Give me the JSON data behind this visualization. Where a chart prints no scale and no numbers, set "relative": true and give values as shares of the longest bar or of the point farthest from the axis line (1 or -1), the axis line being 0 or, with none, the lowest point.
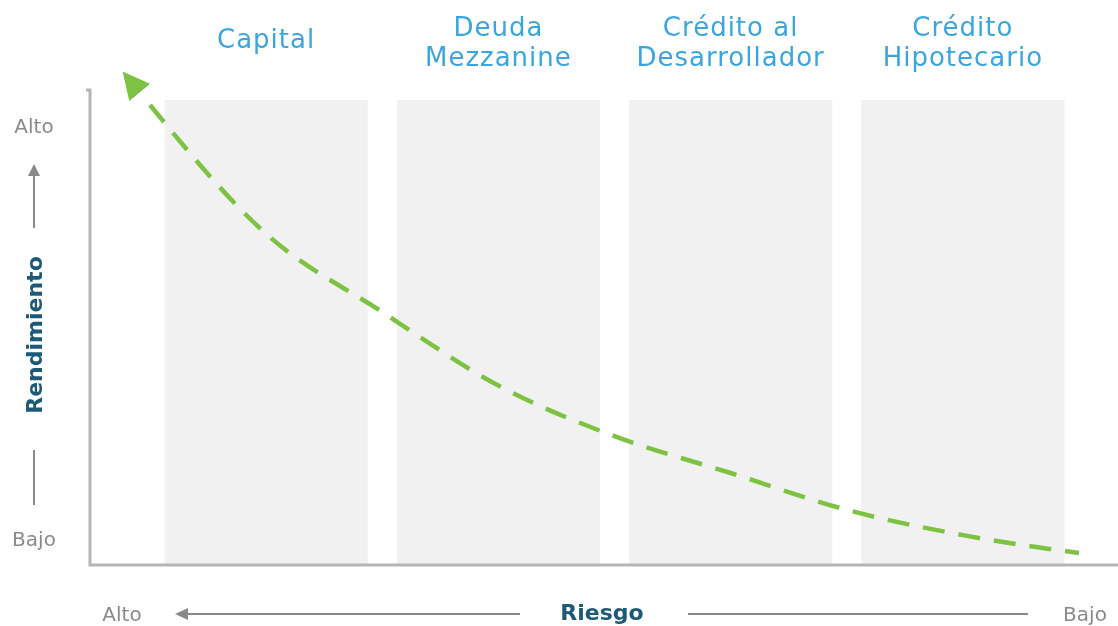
{
  "chart_data": {
    "type": "line",
    "relative": true,
    "xlabel": "Riesgo",
    "ylabel": "Rendimiento",
    "categories": [
      null,
      "Capital",
      null,
      "Deuda Mezzanine",
      null,
      "Crédito al Desarrollador",
      null,
      "Crédito Hipotecario",
      null
    ],
    "series": [
      {
        "color": "#7dc242",
        "values": [
          1,
          0.72,
          0.55,
          0.39,
          0.28,
          0.2,
          0.12,
          0.065,
          0.026
        ]
      }
    ],
    "line_style": "dashed",
    "marker": "none",
    "annotations": [
      "Alto",
      "Bajo",
      "Alto",
      "Bajo"
    ]
  }
}
